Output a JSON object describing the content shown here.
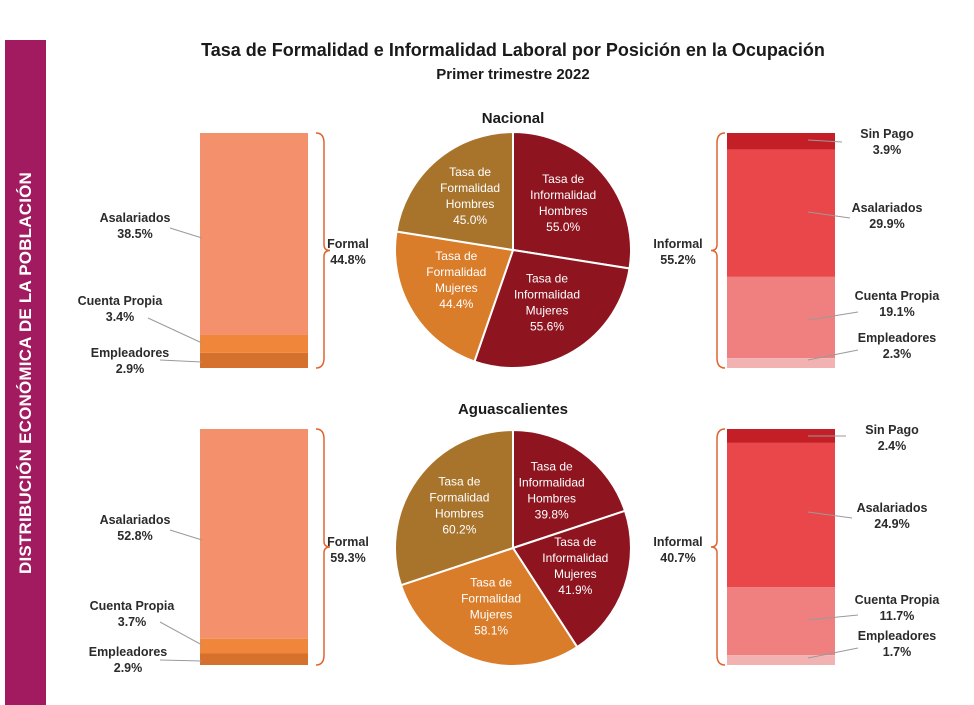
{
  "side_label": "DISTRIBUCIÓN ECONÓMICA DE LA POBLACIÓN",
  "title": "Tasa de Formalidad e Informalidad Laboral por Posición en la Ocupación",
  "subtitle": "Primer trimestre 2022",
  "colors": {
    "sidebar": "#a21a5f",
    "formal_asalariados": "#f4906b",
    "formal_cuenta_propia": "#ef8639",
    "formal_empleadores": "#d5712c",
    "informal_sin_pago": "#c41f26",
    "informal_asalariados": "#e9474a",
    "informal_cuenta_propia": "#f08080",
    "informal_empleadores": "#f3b2b2",
    "pie_formal_hombres": "#a8742c",
    "pie_formal_mujeres": "#d97d2a",
    "pie_informal": "#8e1520",
    "bracket": "#e0632e"
  },
  "chart_data": [
    {
      "type": "pie",
      "title": "Nacional",
      "slices": [
        {
          "label": [
            "Tasa de",
            "Informalidad",
            "Hombres",
            "55.0%"
          ],
          "value": 55.0
        },
        {
          "label": [
            "Tasa de",
            "Informalidad",
            "Mujeres",
            "55.6%"
          ],
          "value": 55.6
        },
        {
          "label": [
            "Tasa de",
            "Formalidad",
            "Mujeres",
            "44.4%"
          ],
          "value": 44.4
        },
        {
          "label": [
            "Tasa de",
            "Formalidad",
            "Hombres",
            "45.0%"
          ],
          "value": 45.0
        }
      ],
      "formal": {
        "label": "Formal",
        "total": "44.8%",
        "segments": [
          {
            "name": "Asalariados",
            "pct": "38.5%",
            "value": 38.5
          },
          {
            "name": "Cuenta Propia",
            "pct": "3.4%",
            "value": 3.4
          },
          {
            "name": "Empleadores",
            "pct": "2.9%",
            "value": 2.9
          }
        ]
      },
      "informal": {
        "label": "Informal",
        "total": "55.2%",
        "segments": [
          {
            "name": "Sin Pago",
            "pct": "3.9%",
            "value": 3.9
          },
          {
            "name": "Asalariados",
            "pct": "29.9%",
            "value": 29.9
          },
          {
            "name": "Cuenta Propia",
            "pct": "19.1%",
            "value": 19.1
          },
          {
            "name": "Empleadores",
            "pct": "2.3%",
            "value": 2.3
          }
        ]
      }
    },
    {
      "type": "pie",
      "title": "Aguascalientes",
      "slices": [
        {
          "label": [
            "Tasa de",
            "Informalidad",
            "Hombres",
            "39.8%"
          ],
          "value": 39.8
        },
        {
          "label": [
            "Tasa de",
            "Informalidad",
            "Mujeres",
            "41.9%"
          ],
          "value": 41.9
        },
        {
          "label": [
            "Tasa de",
            "Formalidad",
            "Mujeres",
            "58.1%"
          ],
          "value": 58.1
        },
        {
          "label": [
            "Tasa de",
            "Formalidad",
            "Hombres",
            "60.2%"
          ],
          "value": 60.2
        }
      ],
      "formal": {
        "label": "Formal",
        "total": "59.3%",
        "segments": [
          {
            "name": "Asalariados",
            "pct": "52.8%",
            "value": 52.8
          },
          {
            "name": "Cuenta Propia",
            "pct": "3.7%",
            "value": 3.7
          },
          {
            "name": "Empleadores",
            "pct": "2.9%",
            "value": 2.9
          }
        ]
      },
      "informal": {
        "label": "Informal",
        "total": "40.7%",
        "segments": [
          {
            "name": "Sin Pago",
            "pct": "2.4%",
            "value": 2.4
          },
          {
            "name": "Asalariados",
            "pct": "24.9%",
            "value": 24.9
          },
          {
            "name": "Cuenta Propia",
            "pct": "11.7%",
            "value": 11.7
          },
          {
            "name": "Empleadores",
            "pct": "1.7%",
            "value": 1.7
          }
        ]
      }
    }
  ]
}
